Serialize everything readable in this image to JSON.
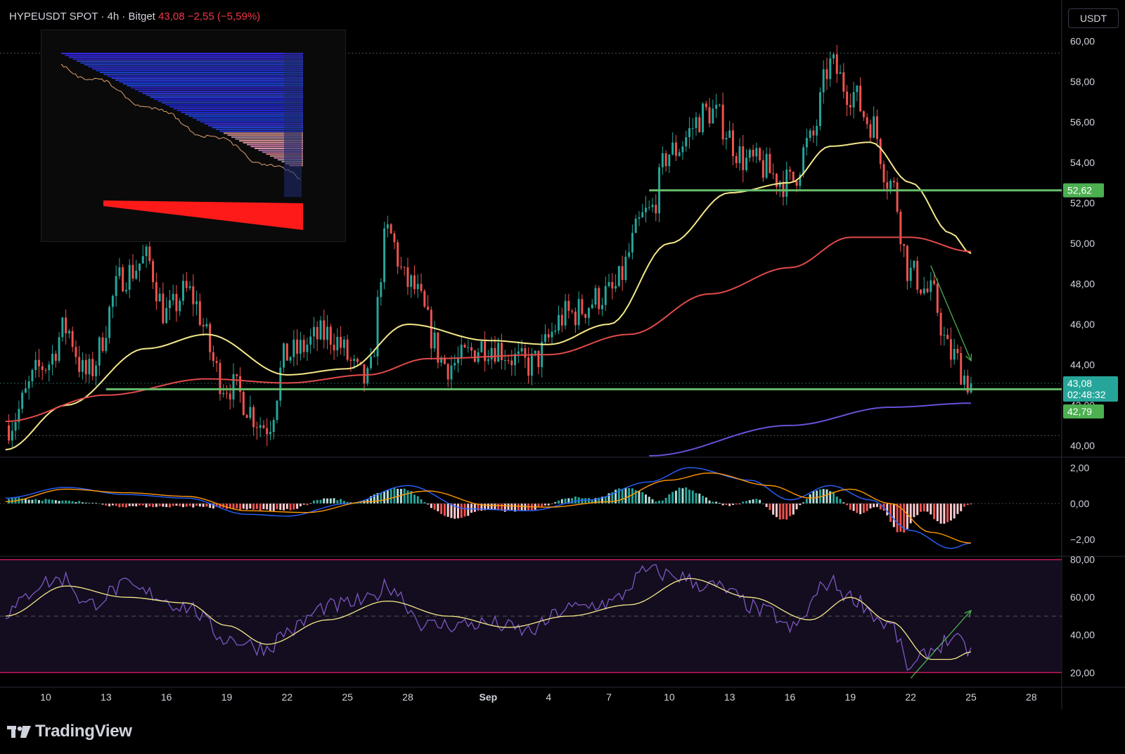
{
  "header": {
    "symbol": "HYPEUSDT SPOT · 4h · Bitget",
    "price": "43,08",
    "change": "−2,55 (−5,59%)",
    "currency": "USDT"
  },
  "brand": {
    "name": "TradingView"
  },
  "colors": {
    "background": "#000000",
    "bull": "#26a69a",
    "bear": "#ef5350",
    "ma_fast": "#f5e88a",
    "ma_slow": "#e04a4a",
    "ma_long": "#6a4fd8",
    "support": "#66bb6a",
    "rsi": "#7e57c2",
    "macd_line": "#2962ff",
    "signal_line": "#ff9800",
    "price_tag": "#26a69a"
  },
  "chart_data": [
    {
      "type": "candlestick",
      "ylim": [
        39.5,
        60.5
      ],
      "y_ticks": [
        "40,00",
        "42,00",
        "44,00",
        "46,00",
        "48,00",
        "50,00",
        "52,00",
        "54,00",
        "56,00",
        "58,00",
        "60,00"
      ],
      "x_ticks": [
        "10",
        "13",
        "16",
        "19",
        "22",
        "25",
        "28",
        "Sep",
        "4",
        "7",
        "10",
        "13",
        "16",
        "19",
        "22",
        "25",
        "28"
      ],
      "key_points": [
        {
          "date": "Aug 8",
          "close": 41.0
        },
        {
          "date": "Aug 10",
          "close": 44.0
        },
        {
          "date": "Aug 11",
          "close": 45.8
        },
        {
          "date": "Aug 12",
          "close": 43.5
        },
        {
          "date": "Aug 14",
          "close": 48.5
        },
        {
          "date": "Aug 15",
          "close": 49.2
        },
        {
          "date": "Aug 16",
          "close": 46.5
        },
        {
          "date": "Aug 17",
          "close": 47.6
        },
        {
          "date": "Aug 19",
          "close": 43.0
        },
        {
          "date": "Aug 21",
          "close": 41.0
        },
        {
          "date": "Aug 22",
          "close": 44.5
        },
        {
          "date": "Aug 24",
          "close": 45.5
        },
        {
          "date": "Aug 26",
          "close": 43.2
        },
        {
          "date": "Aug 27",
          "close": 50.5
        },
        {
          "date": "Aug 28",
          "close": 48.0
        },
        {
          "date": "Aug 30",
          "close": 44.0
        },
        {
          "date": "Sep 1",
          "close": 45.0
        },
        {
          "date": "Sep 3",
          "close": 44.0
        },
        {
          "date": "Sep 5",
          "close": 46.5
        },
        {
          "date": "Sep 7",
          "close": 47.5
        },
        {
          "date": "Sep 9",
          "close": 51.5
        },
        {
          "date": "Sep 10",
          "close": 54.5
        },
        {
          "date": "Sep 12",
          "close": 56.5
        },
        {
          "date": "Sep 14",
          "close": 54.0
        },
        {
          "date": "Sep 16",
          "close": 53.0
        },
        {
          "date": "Sep 17",
          "close": 55.0
        },
        {
          "date": "Sep 18",
          "close": 58.8
        },
        {
          "date": "Sep 19",
          "close": 57.5
        },
        {
          "date": "Sep 20",
          "close": 56.0
        },
        {
          "date": "Sep 21",
          "close": 53.0
        },
        {
          "date": "Sep 22",
          "close": 48.5
        },
        {
          "date": "Sep 23",
          "close": 47.5
        },
        {
          "date": "Sep 24",
          "close": 44.5
        },
        {
          "date": "Sep 25",
          "close": 43.08
        }
      ],
      "moving_averages": [
        {
          "name": "",
          "color": "#f5e88a",
          "points": [
            {
              "date": "Aug 8",
              "value": 39.8
            },
            {
              "date": "Aug 11",
              "value": 42.0
            },
            {
              "date": "Aug 15",
              "value": 44.8
            },
            {
              "date": "Aug 18",
              "value": 45.5
            },
            {
              "date": "Aug 22",
              "value": 43.5
            },
            {
              "date": "Aug 25",
              "value": 43.8
            },
            {
              "date": "Aug 28",
              "value": 46.0
            },
            {
              "date": "Sep 1",
              "value": 45.2
            },
            {
              "date": "Sep 4",
              "value": 45.0
            },
            {
              "date": "Sep 7",
              "value": 46.0
            },
            {
              "date": "Sep 10",
              "value": 50.0
            },
            {
              "date": "Sep 13",
              "value": 52.5
            },
            {
              "date": "Sep 16",
              "value": 53.0
            },
            {
              "date": "Sep 18",
              "value": 54.8
            },
            {
              "date": "Sep 20",
              "value": 55.0
            },
            {
              "date": "Sep 22",
              "value": 53.0
            },
            {
              "date": "Sep 24",
              "value": 50.5
            },
            {
              "date": "Sep 25",
              "value": 49.5
            }
          ]
        },
        {
          "name": "",
          "color": "#e04a4a",
          "points": [
            {
              "date": "Aug 8",
              "value": 41.2
            },
            {
              "date": "Aug 13",
              "value": 42.5
            },
            {
              "date": "Aug 18",
              "value": 43.3
            },
            {
              "date": "Aug 22",
              "value": 43.1
            },
            {
              "date": "Aug 26",
              "value": 43.5
            },
            {
              "date": "Aug 29",
              "value": 44.3
            },
            {
              "date": "Sep 4",
              "value": 44.5
            },
            {
              "date": "Sep 8",
              "value": 45.5
            },
            {
              "date": "Sep 12",
              "value": 47.5
            },
            {
              "date": "Sep 16",
              "value": 48.8
            },
            {
              "date": "Sep 19",
              "value": 50.3
            },
            {
              "date": "Sep 22",
              "value": 50.3
            },
            {
              "date": "Sep 25",
              "value": 49.6
            }
          ]
        },
        {
          "name": "",
          "color": "#6a4fd8",
          "points": [
            {
              "date": "Sep 9",
              "value": 39.5
            },
            {
              "date": "Sep 16",
              "value": 41.0
            },
            {
              "date": "Sep 21",
              "value": 41.9
            },
            {
              "date": "Sep 25",
              "value": 42.1
            }
          ]
        }
      ],
      "horizontal_levels": [
        {
          "value": 52.62,
          "label": "52,62",
          "start": "Sep 9"
        },
        {
          "value": 42.79,
          "label": "42,79",
          "start": "Aug 13"
        }
      ],
      "price_tag": {
        "price": "43,08",
        "countdown": "02:48:32",
        "value": 43.08
      },
      "annotations": [
        {
          "type": "arrow",
          "from": {
            "date": "Sep 23",
            "value": 48.9
          },
          "to": {
            "date": "Sep 25",
            "value": 44.2
          }
        }
      ]
    },
    {
      "type": "line",
      "indicator": "macd",
      "ylim": [
        -2.9,
        2.5
      ],
      "y_ticks": [
        "2,00",
        "0,00",
        "−2,00"
      ],
      "macd": [
        {
          "date": "Aug 8",
          "value": 0.3
        },
        {
          "date": "Aug 11",
          "value": 0.9
        },
        {
          "date": "Aug 14",
          "value": 0.5
        },
        {
          "date": "Aug 17",
          "value": 0.3
        },
        {
          "date": "Aug 20",
          "value": -0.6
        },
        {
          "date": "Aug 22",
          "value": -0.7
        },
        {
          "date": "Aug 25",
          "value": 0.0
        },
        {
          "date": "Aug 28",
          "value": 1.0
        },
        {
          "date": "Aug 31",
          "value": -0.3
        },
        {
          "date": "Sep 3",
          "value": -0.4
        },
        {
          "date": "Sep 6",
          "value": 0.2
        },
        {
          "date": "Sep 9",
          "value": 1.2
        },
        {
          "date": "Sep 11",
          "value": 2.0
        },
        {
          "date": "Sep 14",
          "value": 1.3
        },
        {
          "date": "Sep 16",
          "value": 0.2
        },
        {
          "date": "Sep 18",
          "value": 1.0
        },
        {
          "date": "Sep 20",
          "value": 0.2
        },
        {
          "date": "Sep 22",
          "value": -1.5
        },
        {
          "date": "Sep 24",
          "value": -2.5
        },
        {
          "date": "Sep 25",
          "value": -2.2
        }
      ],
      "signal": [
        {
          "date": "Aug 8",
          "value": 0.1
        },
        {
          "date": "Aug 11",
          "value": 0.8
        },
        {
          "date": "Aug 14",
          "value": 0.6
        },
        {
          "date": "Aug 17",
          "value": 0.4
        },
        {
          "date": "Aug 20",
          "value": -0.4
        },
        {
          "date": "Aug 23",
          "value": -0.5
        },
        {
          "date": "Aug 26",
          "value": 0.1
        },
        {
          "date": "Aug 29",
          "value": 0.7
        },
        {
          "date": "Sep 1",
          "value": -0.1
        },
        {
          "date": "Sep 4",
          "value": -0.2
        },
        {
          "date": "Sep 7",
          "value": 0.1
        },
        {
          "date": "Sep 10",
          "value": 1.3
        },
        {
          "date": "Sep 12",
          "value": 1.7
        },
        {
          "date": "Sep 15",
          "value": 1.0
        },
        {
          "date": "Sep 17",
          "value": 0.3
        },
        {
          "date": "Sep 19",
          "value": 0.8
        },
        {
          "date": "Sep 21",
          "value": 0.0
        },
        {
          "date": "Sep 23",
          "value": -1.6
        },
        {
          "date": "Sep 25",
          "value": -2.2
        }
      ]
    },
    {
      "type": "line",
      "indicator": "rsi",
      "ylim": [
        13,
        81
      ],
      "y_ticks": [
        "80,00",
        "60,00",
        "40,00",
        "20,00"
      ],
      "bands": [
        20,
        50,
        80
      ],
      "rsi": [
        {
          "date": "Aug 8",
          "value": 52
        },
        {
          "date": "Aug 10",
          "value": 68
        },
        {
          "date": "Aug 11",
          "value": 70
        },
        {
          "date": "Aug 12",
          "value": 56
        },
        {
          "date": "Aug 14",
          "value": 66
        },
        {
          "date": "Aug 15",
          "value": 62
        },
        {
          "date": "Aug 17",
          "value": 55
        },
        {
          "date": "Aug 19",
          "value": 38
        },
        {
          "date": "Aug 21",
          "value": 33
        },
        {
          "date": "Aug 22",
          "value": 42
        },
        {
          "date": "Aug 24",
          "value": 55
        },
        {
          "date": "Aug 26",
          "value": 58
        },
        {
          "date": "Aug 27",
          "value": 66
        },
        {
          "date": "Aug 29",
          "value": 45
        },
        {
          "date": "Sep 1",
          "value": 46
        },
        {
          "date": "Sep 3",
          "value": 42
        },
        {
          "date": "Sep 5",
          "value": 54
        },
        {
          "date": "Sep 7",
          "value": 57
        },
        {
          "date": "Sep 9",
          "value": 74
        },
        {
          "date": "Sep 10",
          "value": 72
        },
        {
          "date": "Sep 12",
          "value": 66
        },
        {
          "date": "Sep 15",
          "value": 52
        },
        {
          "date": "Sep 16",
          "value": 43
        },
        {
          "date": "Sep 18",
          "value": 68
        },
        {
          "date": "Sep 19",
          "value": 60
        },
        {
          "date": "Sep 21",
          "value": 45
        },
        {
          "date": "Sep 22",
          "value": 22
        },
        {
          "date": "Sep 23",
          "value": 32
        },
        {
          "date": "Sep 24",
          "value": 38
        },
        {
          "date": "Sep 25",
          "value": 32
        }
      ],
      "rsi_ma": [
        {
          "date": "Aug 8",
          "value": 50
        },
        {
          "date": "Aug 11",
          "value": 66
        },
        {
          "date": "Aug 14",
          "value": 60
        },
        {
          "date": "Aug 17",
          "value": 57
        },
        {
          "date": "Aug 19",
          "value": 45
        },
        {
          "date": "Aug 21",
          "value": 35
        },
        {
          "date": "Aug 24",
          "value": 48
        },
        {
          "date": "Aug 27",
          "value": 58
        },
        {
          "date": "Aug 30",
          "value": 50
        },
        {
          "date": "Sep 2",
          "value": 44
        },
        {
          "date": "Sep 5",
          "value": 50
        },
        {
          "date": "Sep 8",
          "value": 56
        },
        {
          "date": "Sep 11",
          "value": 70
        },
        {
          "date": "Sep 14",
          "value": 60
        },
        {
          "date": "Sep 17",
          "value": 48
        },
        {
          "date": "Sep 19",
          "value": 60
        },
        {
          "date": "Sep 21",
          "value": 47
        },
        {
          "date": "Sep 23",
          "value": 27
        },
        {
          "date": "Sep 24",
          "value": 27
        },
        {
          "date": "Sep 25",
          "value": 31
        }
      ],
      "annotations": [
        {
          "type": "arrow",
          "from": {
            "date": "Sep 22",
            "value": 17
          },
          "to": {
            "date": "Sep 25",
            "value": 53
          }
        }
      ]
    }
  ],
  "inset_chart": {
    "description_free": true
  }
}
